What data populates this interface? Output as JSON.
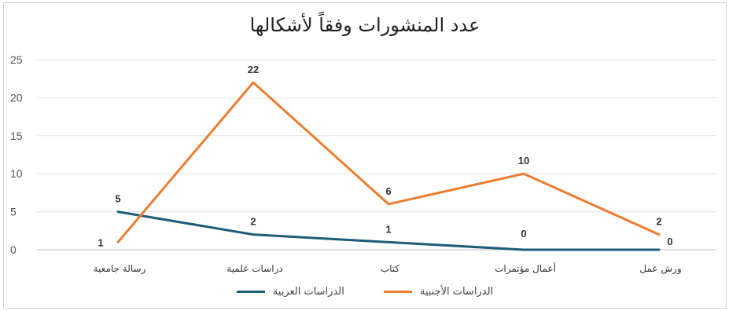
{
  "chart_data": {
    "type": "line",
    "title": "عدد المنشورات وفقاً لأشكالها",
    "categories": [
      "رسالة جامعية",
      "دراسات علمية",
      "كتاب",
      "أعمال مؤتمرات",
      "ورش عمل"
    ],
    "series": [
      {
        "name": "الدراسات العربية",
        "values": [
          5,
          2,
          1,
          0,
          0
        ],
        "color": "#1f5c7a"
      },
      {
        "name": "الدراسات الأجنبية",
        "values": [
          1,
          22,
          6,
          10,
          2
        ],
        "color": "#ed7d31"
      }
    ],
    "ylim": [
      0,
      25
    ],
    "yticks": [
      "0",
      "5",
      "10",
      "15",
      "20",
      "25"
    ],
    "grid": true,
    "legend_position": "bottom",
    "xlabel": "",
    "ylabel": ""
  }
}
